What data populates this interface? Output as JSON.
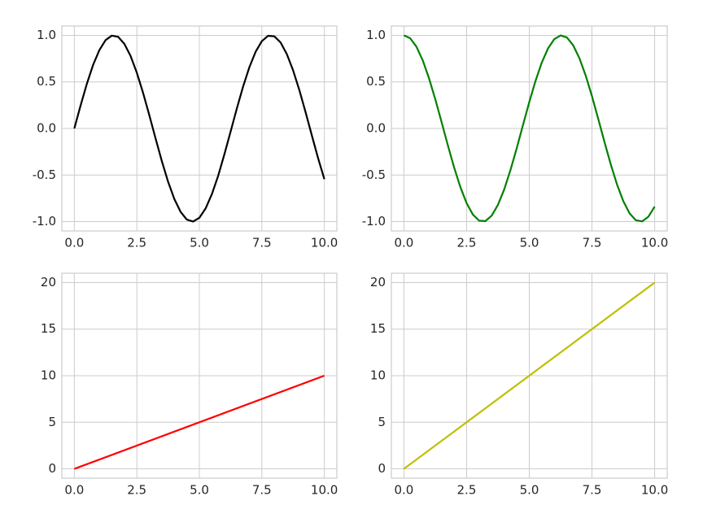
{
  "chart_data": [
    {
      "type": "line",
      "color": "#000000",
      "x": [
        0,
        0.25,
        0.5,
        0.75,
        1,
        1.25,
        1.5,
        1.75,
        2,
        2.25,
        2.5,
        2.75,
        3,
        3.25,
        3.5,
        3.75,
        4,
        4.25,
        4.5,
        4.75,
        5,
        5.25,
        5.5,
        5.75,
        6,
        6.25,
        6.5,
        6.75,
        7,
        7.25,
        7.5,
        7.75,
        8,
        8.25,
        8.5,
        8.75,
        9,
        9.25,
        9.5,
        9.75,
        10
      ],
      "values": [
        0,
        0.247,
        0.479,
        0.682,
        0.841,
        0.949,
        0.997,
        0.984,
        0.909,
        0.778,
        0.598,
        0.382,
        0.141,
        -0.108,
        -0.351,
        -0.572,
        -0.757,
        -0.895,
        -0.978,
        -0.999,
        -0.959,
        -0.859,
        -0.706,
        -0.51,
        -0.279,
        -0.033,
        0.215,
        0.45,
        0.657,
        0.823,
        0.938,
        0.995,
        0.989,
        0.923,
        0.798,
        0.624,
        0.412,
        0.174,
        -0.075,
        -0.319,
        -0.544
      ],
      "xlim": [
        -0.5,
        10.5
      ],
      "ylim": [
        -1.1,
        1.1
      ],
      "xticks": [
        {
          "value": 0,
          "label": "0.0"
        },
        {
          "value": 2.5,
          "label": "2.5"
        },
        {
          "value": 5,
          "label": "5.0"
        },
        {
          "value": 7.5,
          "label": "7.5"
        },
        {
          "value": 10,
          "label": "10.0"
        }
      ],
      "yticks": [
        {
          "value": -1,
          "label": "-1.0"
        },
        {
          "value": -0.5,
          "label": "-0.5"
        },
        {
          "value": 0,
          "label": "0.0"
        },
        {
          "value": 0.5,
          "label": "0.5"
        },
        {
          "value": 1,
          "label": "1.0"
        }
      ],
      "grid": true
    },
    {
      "type": "line",
      "color": "#008000",
      "x": [
        0,
        0.25,
        0.5,
        0.75,
        1,
        1.25,
        1.5,
        1.75,
        2,
        2.25,
        2.5,
        2.75,
        3,
        3.25,
        3.5,
        3.75,
        4,
        4.25,
        4.5,
        4.75,
        5,
        5.25,
        5.5,
        5.75,
        6,
        6.25,
        6.5,
        6.75,
        7,
        7.25,
        7.5,
        7.75,
        8,
        8.25,
        8.5,
        8.75,
        9,
        9.25,
        9.5,
        9.75,
        10
      ],
      "values": [
        1,
        0.969,
        0.878,
        0.732,
        0.54,
        0.315,
        0.071,
        -0.178,
        -0.416,
        -0.628,
        -0.801,
        -0.924,
        -0.99,
        -0.994,
        -0.936,
        -0.82,
        -0.654,
        -0.446,
        -0.211,
        0.038,
        0.284,
        0.512,
        0.709,
        0.861,
        0.96,
        0.999,
        0.977,
        0.893,
        0.754,
        0.568,
        0.347,
        0.103,
        -0.146,
        -0.386,
        -0.602,
        -0.78,
        -0.911,
        -0.985,
        -0.997,
        -0.947,
        -0.839
      ],
      "xlim": [
        -0.5,
        10.5
      ],
      "ylim": [
        -1.1,
        1.1
      ],
      "xticks": [
        {
          "value": 0,
          "label": "0.0"
        },
        {
          "value": 2.5,
          "label": "2.5"
        },
        {
          "value": 5,
          "label": "5.0"
        },
        {
          "value": 7.5,
          "label": "7.5"
        },
        {
          "value": 10,
          "label": "10.0"
        }
      ],
      "yticks": [
        {
          "value": -1,
          "label": "-1.0"
        },
        {
          "value": -0.5,
          "label": "-0.5"
        },
        {
          "value": 0,
          "label": "0.0"
        },
        {
          "value": 0.5,
          "label": "0.5"
        },
        {
          "value": 1,
          "label": "1.0"
        }
      ],
      "grid": true
    },
    {
      "type": "line",
      "color": "#ff0000",
      "x": [
        0,
        10
      ],
      "values": [
        0,
        10
      ],
      "xlim": [
        -0.5,
        10.5
      ],
      "ylim": [
        -1,
        21
      ],
      "xticks": [
        {
          "value": 0,
          "label": "0.0"
        },
        {
          "value": 2.5,
          "label": "2.5"
        },
        {
          "value": 5,
          "label": "5.0"
        },
        {
          "value": 7.5,
          "label": "7.5"
        },
        {
          "value": 10,
          "label": "10.0"
        }
      ],
      "yticks": [
        0,
        5,
        10,
        15,
        20
      ],
      "grid": true
    },
    {
      "type": "line",
      "color": "#bfbf00",
      "x": [
        0,
        10
      ],
      "values": [
        0,
        20
      ],
      "xlim": [
        -0.5,
        10.5
      ],
      "ylim": [
        -1,
        21
      ],
      "xticks": [
        {
          "value": 0,
          "label": "0.0"
        },
        {
          "value": 2.5,
          "label": "2.5"
        },
        {
          "value": 5,
          "label": "5.0"
        },
        {
          "value": 7.5,
          "label": "7.5"
        },
        {
          "value": 10,
          "label": "10.0"
        }
      ],
      "yticks": [
        0,
        5,
        10,
        15,
        20
      ],
      "grid": true
    }
  ]
}
